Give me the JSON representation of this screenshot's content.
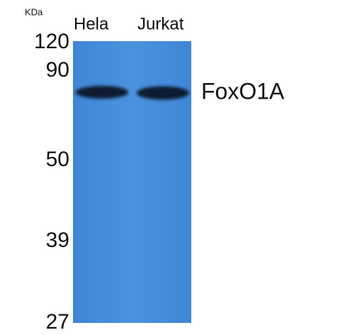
{
  "unit": "KDa",
  "lanes": [
    "Hela",
    "Jurkat"
  ],
  "markers": [
    120,
    90,
    50,
    39,
    27
  ],
  "band_label": "FoxO1A"
}
